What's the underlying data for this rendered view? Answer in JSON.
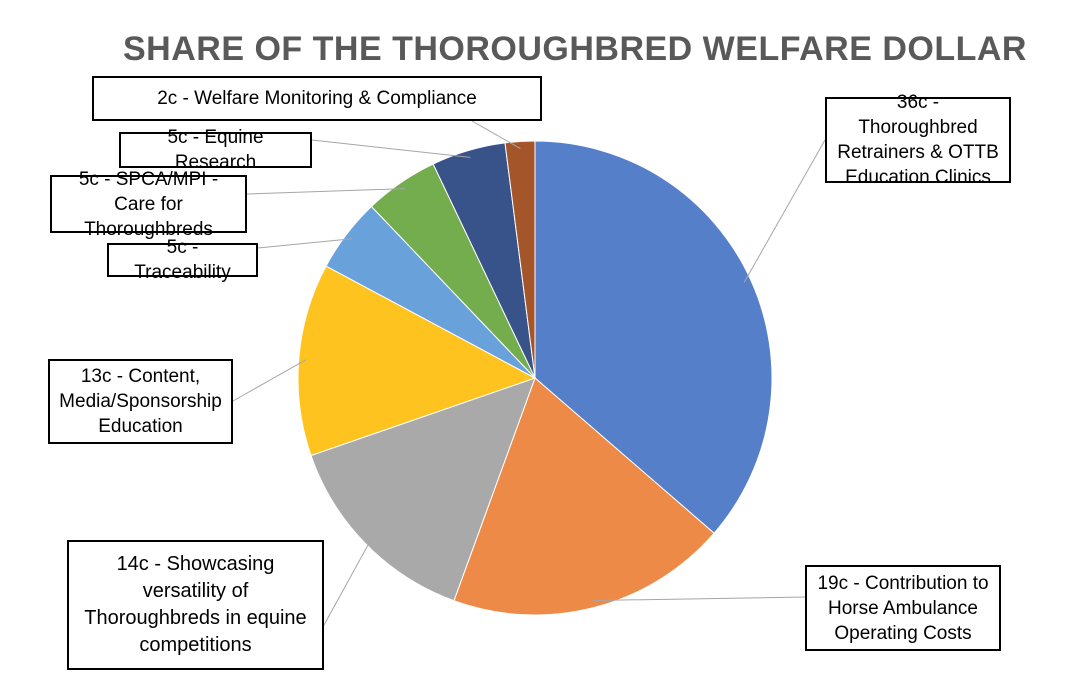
{
  "chart_data": {
    "type": "pie",
    "title": "SHARE OF THE THOROUGHBRED WELFARE DOLLAR",
    "unit": "c",
    "legend": "callout labels",
    "slices": [
      {
        "label": "36c - Thoroughbred Retrainers & OTTB Education Clinics",
        "category": "Thoroughbred Retrainers & OTTB Education Clinics",
        "value": 36,
        "color": "#5580C9"
      },
      {
        "label": "19c - Contribution to Horse Ambulance Operating Costs",
        "category": "Contribution to Horse Ambulance Operating Costs",
        "value": 19,
        "color": "#EE8A47"
      },
      {
        "label": "14c - Showcasing versatility of Thoroughbreds in equine competitions",
        "category": "Showcasing versatility of Thoroughbreds in equine competitions",
        "value": 14,
        "color": "#A9A9A9"
      },
      {
        "label": "13c - Content, Media/Sponsorship Education",
        "category": "Content, Media/Sponsorship Education",
        "value": 13,
        "color": "#FFC31F"
      },
      {
        "label": "5c - Traceability",
        "category": "Traceability",
        "value": 5,
        "color": "#69A2DA"
      },
      {
        "label": "5c - SPCA/MPI - Care for Thoroughbreds",
        "category": "SPCA/MPI - Care for Thoroughbreds",
        "value": 5,
        "color": "#74AD4E"
      },
      {
        "label": "5c - Equine Research",
        "category": "Equine Research",
        "value": 5,
        "color": "#375389"
      },
      {
        "label": "2c - Welfare Monitoring & Compliance",
        "category": "Welfare Monitoring & Compliance",
        "value": 2,
        "color": "#A4562A"
      }
    ]
  }
}
